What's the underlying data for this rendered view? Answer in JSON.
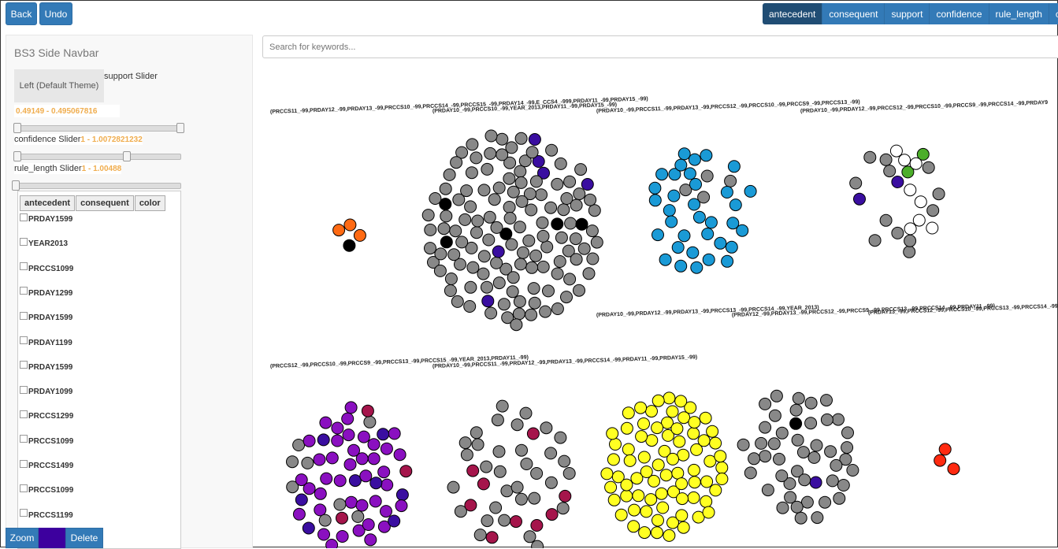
{
  "toolbar": {
    "back": "Back",
    "undo": "Undo",
    "zoom": "Zoom",
    "delete": "Delete",
    "swatch_color": "#3d009e"
  },
  "top_buttons": [
    "antecedent",
    "consequent",
    "support",
    "confidence",
    "rule_length",
    "color"
  ],
  "sidebar": {
    "brand": "BS3 Side Navbar",
    "theme_button": "Left (Default Theme)",
    "support_label": "support Slider",
    "support_range": "0.49149 - 0.495067816",
    "confidence_label": "confidence Slider",
    "confidence_range": "1 - 1.0072821232",
    "rule_length_label": "rule_length Slider",
    "rule_length_range": "1 - 1.00488",
    "list_buttons": [
      "antecedent",
      "consequent",
      "color"
    ],
    "items": [
      "PRDAY1599",
      "YEAR2013",
      "PRCCS1099",
      "PRDAY1299",
      "PRDAY1599",
      "PRDAY1199",
      "PRDAY1599",
      "PRDAY1099",
      "PRCCS1299",
      "PRCCS1099",
      "PRCCS1499",
      "PRCCS1099",
      "PRCCS1199"
    ]
  },
  "search": {
    "placeholder": "Search for keywords..."
  },
  "colors": {
    "gray": "#888888",
    "orange": "#ff6a13",
    "black": "#000000",
    "indigo": "#3a0ea0",
    "blue": "#1a9ad6",
    "green": "#4cae2a",
    "white": "#ffffff",
    "purple": "#8a10c0",
    "maroon": "#a5154b",
    "yellow": "#ffff22",
    "red": "#ff2a10",
    "accent": "#f0ad4e"
  },
  "graph": {
    "labels": [
      "(PRCCS11_-99,PRDAY12_-99,PRDAY13_-99,PRCCS10_-99,PRCCS14_-99,PRCCS15_-99,PRDAY14_-99,E_CCS4_-999,PRDAY11_-99,PRDAY15_-99)",
      "(PRDAY10_-99,PRCCS10_-99,YEAR_2013,PRDAY11_-99,PRDAY15_-99)",
      "(PRDAY10_-99,PRCCS11_-99,PRDAY13_-99,PRCCS12_-99,PRCCS10_-99,PRCCS9_-99,PRCCS13_-99)",
      "(PRDAY10_-99,PRDAY12_-99,PRCCS12_-99,PRCCS10_-99,PRCCS9_-99,PRCCS14_-99,PRDAY9",
      "(PRDAY10_-99,PRDAY12_-99,PRDAY13_-99,PRCCS13_-99,PRCCS14_-99,YEAR_2013)",
      "(PRDAY12_-99,PRDAY13_-99,PRCCS12_-99,PRCCS9_-99,PRCCS13_-99,PRCCS14_-99,PRDAY11_-99)",
      "(PRDAY13_-99,PRCCS12_-99,PRCCS10_-99,PRCCS13_-99,PRCCS14_-99,PRCCS15_",
      "(PRCCS12_-99,PRCCS10_-99,PRCCS9_-99,PRCCS13_-99,PRCCS15_-99,YEAR_2013,PRDAY11_-99)",
      "(PRDAY10_-99,PRCCS11_-99,PRDAY12_-99,PRDAY13_-99,PRCCS14_-99,PRDAY11_-99,PRDAY15_-99)"
    ],
    "clusters": [
      {
        "name": "orange",
        "color": "#ff6a13",
        "count": 3,
        "accents": [
          {
            "color": "#000000",
            "count": 1
          }
        ]
      },
      {
        "name": "gray-big",
        "color": "#888888",
        "count": 118,
        "accents": [
          {
            "color": "#3a0ea0",
            "count": 6
          },
          {
            "color": "#000000",
            "count": 5
          }
        ]
      },
      {
        "name": "blue",
        "color": "#1a9ad6",
        "count": 34,
        "accents": [
          {
            "color": "#888888",
            "count": 4
          }
        ]
      },
      {
        "name": "mixed",
        "color": "#888888",
        "count": 12,
        "accents": [
          {
            "color": "#ffffff",
            "count": 8
          },
          {
            "color": "#4cae2a",
            "count": 2
          },
          {
            "color": "#3a0ea0",
            "count": 2
          }
        ]
      },
      {
        "name": "purple",
        "color": "#8a10c0",
        "count": 40,
        "accents": [
          {
            "color": "#3a0ea0",
            "count": 8
          },
          {
            "color": "#888888",
            "count": 8
          },
          {
            "color": "#a5154b",
            "count": 3
          }
        ]
      },
      {
        "name": "maroon-gray",
        "color": "#888888",
        "count": 33,
        "accents": [
          {
            "color": "#a5154b",
            "count": 9
          }
        ]
      },
      {
        "name": "yellow",
        "color": "#ffff22",
        "count": 84,
        "accents": []
      },
      {
        "name": "gray-small",
        "color": "#888888",
        "count": 44,
        "accents": [
          {
            "color": "#000000",
            "count": 1
          },
          {
            "color": "#3a0ea0",
            "count": 1
          }
        ]
      },
      {
        "name": "red",
        "color": "#ff2a10",
        "count": 3,
        "accents": []
      }
    ]
  }
}
